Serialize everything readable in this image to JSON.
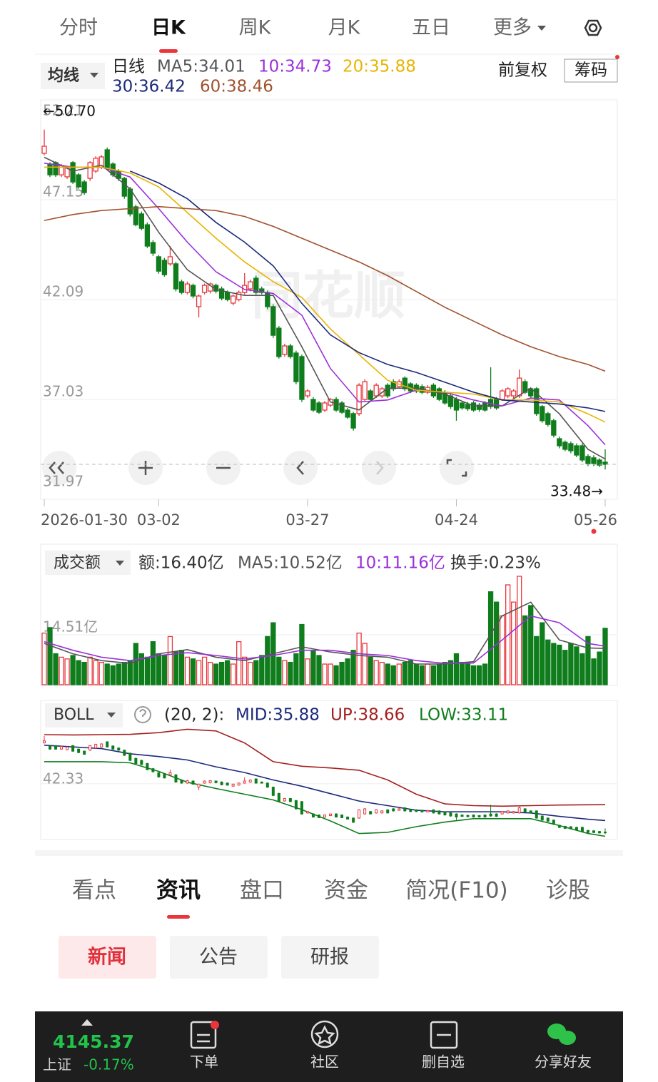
{
  "tabs": {
    "items": [
      "分时",
      "日K",
      "周K",
      "月K",
      "五日",
      "更多"
    ],
    "active": 1
  },
  "chart_data": [
    {
      "type": "candlestick",
      "selector": "均线",
      "period": "日线",
      "legend": [
        {
          "text": "MA5:34.01",
          "color": "#555555"
        },
        {
          "text": "10:34.73",
          "color": "#9b30d9"
        },
        {
          "text": "20:35.88",
          "color": "#e8b400"
        },
        {
          "text": "30:36.42",
          "color": "#1c2a7a"
        },
        {
          "text": "60:38.46",
          "color": "#a0522d"
        }
      ],
      "adjust": "前复权",
      "chips": "筹码",
      "watermark": "同花顺",
      "annotations": [
        "←50.70",
        "33.48→"
      ],
      "up_color": "#e8363c",
      "down_color": "#0f7d1c",
      "ylim": [
        31.97,
        52.21
      ],
      "yticks": [
        52.21,
        47.15,
        42.09,
        37.03,
        31.97
      ],
      "xticks": [
        {
          "value": 0,
          "label": "2026-01-30"
        },
        {
          "value": 20,
          "label": "03-02"
        },
        {
          "value": 46,
          "label": "03-27"
        },
        {
          "value": 72,
          "label": "04-24"
        },
        {
          "value": 98,
          "label": "05-26"
        }
      ],
      "open": [
        49.5,
        48.96,
        49.03,
        48.41,
        48.31,
        49.03,
        48.41,
        48.05,
        48.23,
        48.6,
        48.78,
        49.68,
        48.96,
        48.6,
        48.23,
        47.69,
        46.79,
        46.43,
        45.88,
        44.98,
        44.26,
        44.08,
        43.9,
        43.9,
        42.99,
        42.45,
        42.81,
        41.73,
        42.45,
        42.52,
        42.81,
        42.63,
        42.45,
        41.91,
        42.09,
        42.45,
        42.63,
        43.17,
        42.63,
        42.45,
        41.73,
        40.64,
        39.31,
        39.74,
        39.38,
        39.2,
        37.21,
        37.03,
        36.85,
        36.49,
        36.74,
        37.03,
        36.85,
        36.49,
        36.31,
        36.31,
        37.03,
        37.46,
        37.21,
        37.21,
        37.75,
        37.93,
        37.68,
        38.11,
        37.82,
        37.75,
        37.68,
        37.39,
        37.75,
        37.57,
        37.39,
        37.21,
        37.03,
        36.85,
        36.78,
        36.85,
        36.74,
        36.85,
        37.03,
        37.03,
        37.03,
        37.21,
        37.21,
        37.21,
        37.93,
        37.57,
        37.57,
        36.67,
        36.31,
        35.95,
        35.04,
        34.86,
        34.79,
        34.68,
        34.68,
        34.14,
        34.07,
        33.96,
        33.85
      ],
      "high": [
        50.7,
        49.05,
        49.1,
        48.95,
        48.85,
        49.1,
        48.5,
        48.15,
        49.1,
        49.35,
        49.42,
        49.8,
        49.05,
        48.7,
        48.3,
        47.8,
        46.9,
        46.55,
        46.0,
        45.1,
        44.35,
        44.2,
        44.8,
        44.0,
        43.1,
        43.0,
        42.9,
        42.35,
        42.9,
        42.95,
        42.9,
        42.75,
        42.55,
        42.35,
        42.55,
        43.43,
        43.1,
        43.3,
        42.75,
        42.55,
        41.85,
        40.75,
        39.85,
        39.85,
        39.5,
        39.3,
        37.55,
        37.15,
        36.95,
        36.95,
        37.1,
        37.15,
        36.95,
        36.6,
        36.4,
        37.85,
        38.05,
        37.55,
        37.85,
        37.65,
        37.85,
        38.05,
        38.05,
        38.2,
        37.9,
        37.85,
        37.8,
        37.75,
        37.85,
        37.65,
        37.5,
        37.3,
        37.15,
        36.95,
        36.9,
        36.95,
        36.85,
        36.95,
        38.66,
        37.15,
        37.55,
        37.65,
        37.55,
        38.55,
        38.05,
        37.65,
        37.65,
        36.75,
        36.4,
        36.05,
        35.15,
        34.95,
        34.9,
        34.8,
        34.8,
        34.25,
        34.2,
        34.05,
        34.5
      ],
      "low": [
        49.4,
        48.3,
        48.3,
        48.3,
        48.2,
        47.95,
        47.7,
        47.4,
        48.1,
        48.5,
        48.7,
        48.7,
        48.3,
        48.1,
        47.2,
        46.3,
        45.8,
        45.6,
        44.7,
        44.3,
        43.4,
        43.25,
        43.8,
        42.5,
        42.35,
        42.35,
        42.15,
        41.19,
        42.35,
        42.4,
        42.4,
        42.05,
        42.0,
        41.8,
        42.0,
        42.35,
        42.5,
        42.35,
        42.35,
        41.6,
        40.15,
        39.1,
        39.2,
        39.1,
        37.8,
        36.9,
        37.1,
        36.4,
        36.3,
        36.4,
        36.65,
        36.4,
        36.3,
        36.05,
        35.45,
        36.2,
        36.95,
        36.95,
        37.1,
        37.1,
        37.1,
        37.45,
        37.6,
        37.45,
        37.35,
        37.35,
        37.3,
        37.3,
        37.1,
        36.95,
        36.75,
        36.55,
        35.95,
        36.5,
        36.45,
        36.4,
        36.4,
        36.4,
        36.55,
        36.5,
        36.95,
        37.1,
        37.1,
        37.1,
        37.3,
        37.1,
        36.2,
        35.85,
        35.65,
        35.1,
        34.55,
        34.4,
        34.3,
        34.1,
        33.85,
        33.65,
        33.65,
        33.6,
        33.48
      ],
      "close": [
        49.86,
        48.41,
        48.41,
        48.88,
        48.78,
        48.05,
        47.8,
        47.51,
        49.03,
        49.25,
        49.32,
        48.78,
        48.41,
        48.23,
        47.33,
        46.43,
        45.88,
        45.7,
        44.8,
        44.44,
        43.53,
        43.35,
        44.26,
        42.63,
        42.45,
        42.88,
        42.27,
        42.27,
        42.81,
        42.88,
        42.52,
        42.16,
        42.09,
        42.27,
        42.45,
        42.81,
        42.99,
        42.45,
        42.45,
        41.73,
        40.28,
        39.2,
        39.74,
        39.2,
        37.93,
        37.03,
        37.46,
        36.49,
        36.38,
        36.85,
        37.03,
        36.49,
        36.38,
        36.13,
        35.58,
        37.75,
        37.93,
        37.03,
        37.75,
        37.57,
        37.21,
        37.57,
        37.93,
        37.57,
        37.46,
        37.46,
        37.39,
        37.64,
        37.21,
        37.03,
        36.85,
        36.67,
        36.49,
        36.6,
        36.56,
        36.49,
        36.52,
        36.49,
        36.67,
        36.6,
        37.46,
        37.57,
        37.46,
        38.11,
        37.39,
        37.21,
        36.31,
        35.95,
        35.76,
        35.22,
        34.68,
        34.5,
        34.43,
        34.21,
        33.96,
        33.78,
        33.78,
        33.7,
        33.74
      ],
      "line_x": [
        0,
        5,
        10,
        15,
        20,
        25,
        30,
        35,
        40,
        45,
        50,
        55,
        60,
        65,
        70,
        75,
        80,
        85,
        90,
        95,
        98
      ],
      "lines": [
        {
          "color": "#555555",
          "values": [
            49.3,
            48.6,
            48.9,
            47.7,
            45.5,
            43.6,
            42.6,
            42.3,
            42.3,
            39.7,
            36.9,
            36.5,
            37.6,
            37.6,
            37.3,
            36.7,
            36.7,
            37.6,
            36.3,
            34.5,
            34.01
          ]
        },
        {
          "color": "#9b30d9",
          "values": [
            49.0,
            48.8,
            48.8,
            48.3,
            46.7,
            45.0,
            43.5,
            42.6,
            42.4,
            41.3,
            38.6,
            36.9,
            37.0,
            37.5,
            37.4,
            37.0,
            36.7,
            37.1,
            37.0,
            35.7,
            34.73
          ]
        },
        {
          "color": "#e8b400",
          "values": [
            48.8,
            48.8,
            48.8,
            48.5,
            47.8,
            46.5,
            45.2,
            44.0,
            43.0,
            42.2,
            40.6,
            39.3,
            38.0,
            37.5,
            37.4,
            37.3,
            37.0,
            37.0,
            36.9,
            36.3,
            35.88
          ]
        },
        {
          "color": "#1c2a7a",
          "values": [
            null,
            null,
            null,
            48.6,
            48.0,
            47.2,
            46.0,
            45.0,
            43.8,
            41.9,
            40.3,
            39.4,
            38.8,
            38.4,
            37.9,
            37.4,
            37.0,
            36.9,
            36.8,
            36.6,
            36.42
          ]
        },
        {
          "color": "#a0522d",
          "values": [
            46.1,
            46.4,
            46.6,
            46.7,
            46.8,
            46.7,
            46.6,
            46.3,
            45.8,
            45.2,
            44.6,
            44.0,
            43.3,
            42.5,
            41.7,
            41.0,
            40.3,
            39.7,
            39.2,
            38.8,
            38.46
          ]
        }
      ]
    },
    {
      "type": "bar",
      "selector": "成交额",
      "legend": [
        {
          "text": "额:16.40亿",
          "color": "#333333"
        },
        {
          "text": "MA5:10.52亿",
          "color": "#555555"
        },
        {
          "text": "10:11.16亿",
          "color": "#9b30d9"
        },
        {
          "text": "换手:0.23%",
          "color": "#333333"
        }
      ],
      "ylim": [
        0,
        40.4
      ],
      "yticks": [
        {
          "value": 14.51,
          "label": "14.51亿"
        }
      ],
      "values": [
        15.0,
        16.6,
        9.0,
        8.0,
        7.5,
        8.5,
        7.0,
        6.5,
        8.0,
        7.0,
        6.5,
        6.0,
        5.5,
        6.0,
        6.5,
        7.0,
        12.0,
        9.0,
        8.0,
        12.5,
        9.0,
        8.5,
        14.0,
        9.5,
        10.0,
        8.0,
        7.5,
        7.0,
        8.0,
        6.5,
        6.0,
        6.5,
        7.0,
        6.0,
        12.5,
        8.0,
        6.5,
        7.0,
        8.5,
        14.0,
        18.0,
        8.0,
        7.0,
        6.5,
        9.0,
        17.5,
        7.5,
        10.0,
        8.5,
        6.0,
        6.0,
        5.5,
        6.5,
        7.5,
        10.0,
        15.0,
        12.0,
        8.0,
        7.0,
        6.5,
        6.0,
        5.5,
        6.0,
        6.5,
        7.0,
        6.0,
        5.5,
        6.0,
        5.5,
        6.0,
        6.5,
        7.0,
        9.0,
        6.5,
        6.0,
        5.5,
        5.5,
        6.0,
        27.0,
        24.0,
        20.0,
        29.0,
        24.0,
        31.5,
        20.0,
        23.0,
        14.0,
        18.0,
        13.0,
        12.0,
        11.5,
        10.0,
        12.0,
        11.0,
        9.0,
        14.0,
        7.5,
        9.5,
        16.4
      ],
      "line_x": [
        0,
        5,
        10,
        15,
        20,
        25,
        30,
        35,
        40,
        45,
        50,
        55,
        60,
        65,
        70,
        75,
        80,
        85,
        90,
        95,
        98
      ],
      "lines": [
        {
          "color": "#555555",
          "values": [
            12.0,
            9.0,
            7.0,
            6.2,
            9.0,
            10.2,
            8.0,
            7.0,
            9.0,
            11.0,
            9.5,
            8.5,
            8.0,
            6.0,
            6.0,
            6.7,
            20.0,
            24.0,
            13.0,
            10.7,
            10.52
          ]
        },
        {
          "color": "#9b30d9",
          "values": [
            12.5,
            10.0,
            8.0,
            7.0,
            8.5,
            9.3,
            8.5,
            7.5,
            8.5,
            10.0,
            10.0,
            9.0,
            8.5,
            7.0,
            6.2,
            6.3,
            13.0,
            20.0,
            18.0,
            12.0,
            11.16
          ]
        }
      ]
    },
    {
      "type": "boll",
      "selector": "BOLL",
      "params": "(20, 2):",
      "legend": [
        {
          "text": "MID:35.88",
          "color": "#1c2a7a"
        },
        {
          "text": "UP:38.66",
          "color": "#a32020"
        },
        {
          "text": "LOW:33.11",
          "color": "#0f7d1c"
        }
      ],
      "ylim": [
        32.8,
        52.2
      ],
      "yticks": [
        42.33
      ],
      "line_x": [
        0,
        5,
        10,
        15,
        20,
        25,
        30,
        35,
        40,
        45,
        50,
        55,
        60,
        65,
        70,
        75,
        80,
        85,
        90,
        95,
        98
      ],
      "lines": [
        {
          "color": "#a32020",
          "values": [
            50.95,
            50.9,
            50.95,
            51.0,
            51.3,
            51.9,
            51.6,
            49.5,
            46.2,
            45.4,
            45.1,
            44.7,
            43.0,
            40.5,
            38.8,
            38.5,
            38.4,
            38.5,
            38.6,
            38.65,
            38.66
          ]
        },
        {
          "color": "#1c2a7a",
          "values": [
            49.1,
            48.8,
            48.5,
            47.6,
            47.1,
            46.5,
            45.3,
            44.3,
            43.0,
            41.9,
            40.6,
            39.3,
            38.5,
            37.7,
            37.4,
            37.4,
            37.4,
            37.2,
            36.6,
            36.1,
            35.88
          ]
        },
        {
          "color": "#0f7d1c",
          "values": [
            46.2,
            46.2,
            46.2,
            46.0,
            44.5,
            42.6,
            41.5,
            40.5,
            39.5,
            37.8,
            35.8,
            33.6,
            33.8,
            34.8,
            35.6,
            36.2,
            36.2,
            36.2,
            35.0,
            33.6,
            33.11
          ]
        }
      ]
    }
  ],
  "info_tabs": {
    "items": [
      "看点",
      "资讯",
      "盘口",
      "资金",
      "简况(F10)",
      "诊股"
    ],
    "active": 1
  },
  "sub_tabs": {
    "items": [
      "新闻",
      "公告",
      "研报"
    ],
    "active": 0
  },
  "footer": {
    "index_value": "4145.37",
    "index_name": "上证",
    "index_change": "-0.17%",
    "actions": [
      "下单",
      "社区",
      "删自选",
      "分享好友"
    ]
  }
}
